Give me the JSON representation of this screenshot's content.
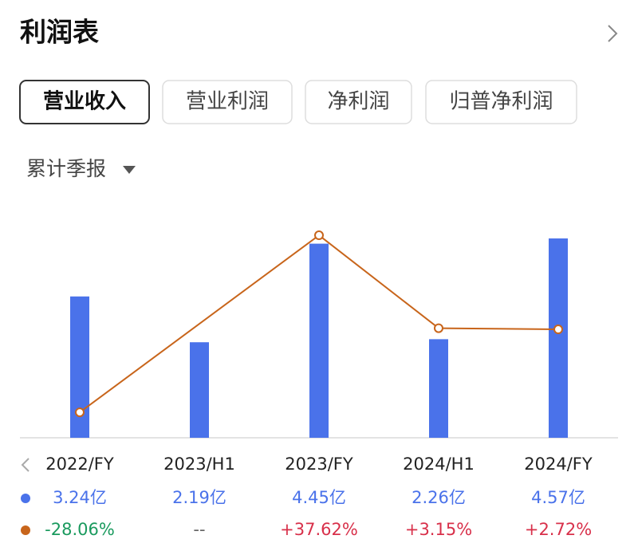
{
  "header": {
    "title": "利润表"
  },
  "tabs": [
    "营业收入",
    "营业利润",
    "净利润",
    "归普净利润"
  ],
  "selected_tab": 0,
  "period_selector": "累计季报",
  "chart_data": {
    "type": "bar",
    "categories": [
      "2022/FY",
      "2023/H1",
      "2023/FY",
      "2024/H1",
      "2024/FY"
    ],
    "series": [
      {
        "type": "bar",
        "color": "#4a72ea",
        "values": [
          3.24,
          2.19,
          4.45,
          2.26,
          4.57
        ],
        "value_labels": [
          "3.24亿",
          "2.19亿",
          "4.45亿",
          "2.26亿",
          "4.57亿"
        ]
      },
      {
        "type": "line",
        "axis": "y2",
        "color": "#c8651b",
        "values": [
          -28.06,
          null,
          37.62,
          3.15,
          2.72
        ],
        "value_labels": [
          "-28.06%",
          "--",
          "+37.62%",
          "+3.15%",
          "+2.72%"
        ]
      }
    ],
    "ylim": [
      0,
      5
    ],
    "y2lim": [
      -37.5,
      43.4
    ],
    "connect_gaps": true
  }
}
